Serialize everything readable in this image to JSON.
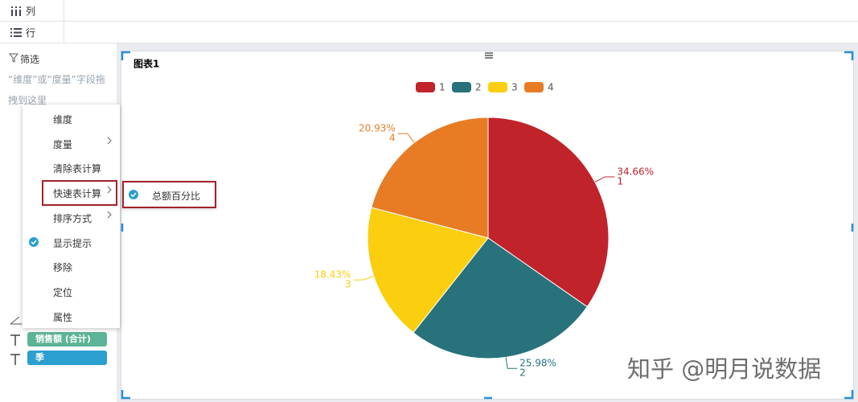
{
  "ui": {
    "columns_label": "列",
    "rows_label": "行",
    "filter_label": "筛选",
    "filter_hint": "“维度”或“度量”字段拖拽到这里",
    "menu": [
      "维度",
      "度量",
      "清除表计算",
      "快速表计算",
      "排序方式",
      "显示提示",
      "移除",
      "定位",
      "属性"
    ],
    "submenu": [
      "总额百分比"
    ],
    "pills": [
      "销售额 (合计)",
      "季"
    ],
    "watermark": "知乎 @明月说数据"
  },
  "chart_data": {
    "type": "pie",
    "title": "图表1",
    "categories": [
      "1",
      "2",
      "3",
      "4"
    ],
    "values": [
      34.66,
      25.98,
      18.43,
      20.93
    ],
    "value_labels": [
      "34.66%",
      "25.98%",
      "18.43%",
      "20.93%"
    ],
    "colors": [
      "#c1232b",
      "#27727b",
      "#fcce10",
      "#e87c25"
    ],
    "legend": "top"
  }
}
